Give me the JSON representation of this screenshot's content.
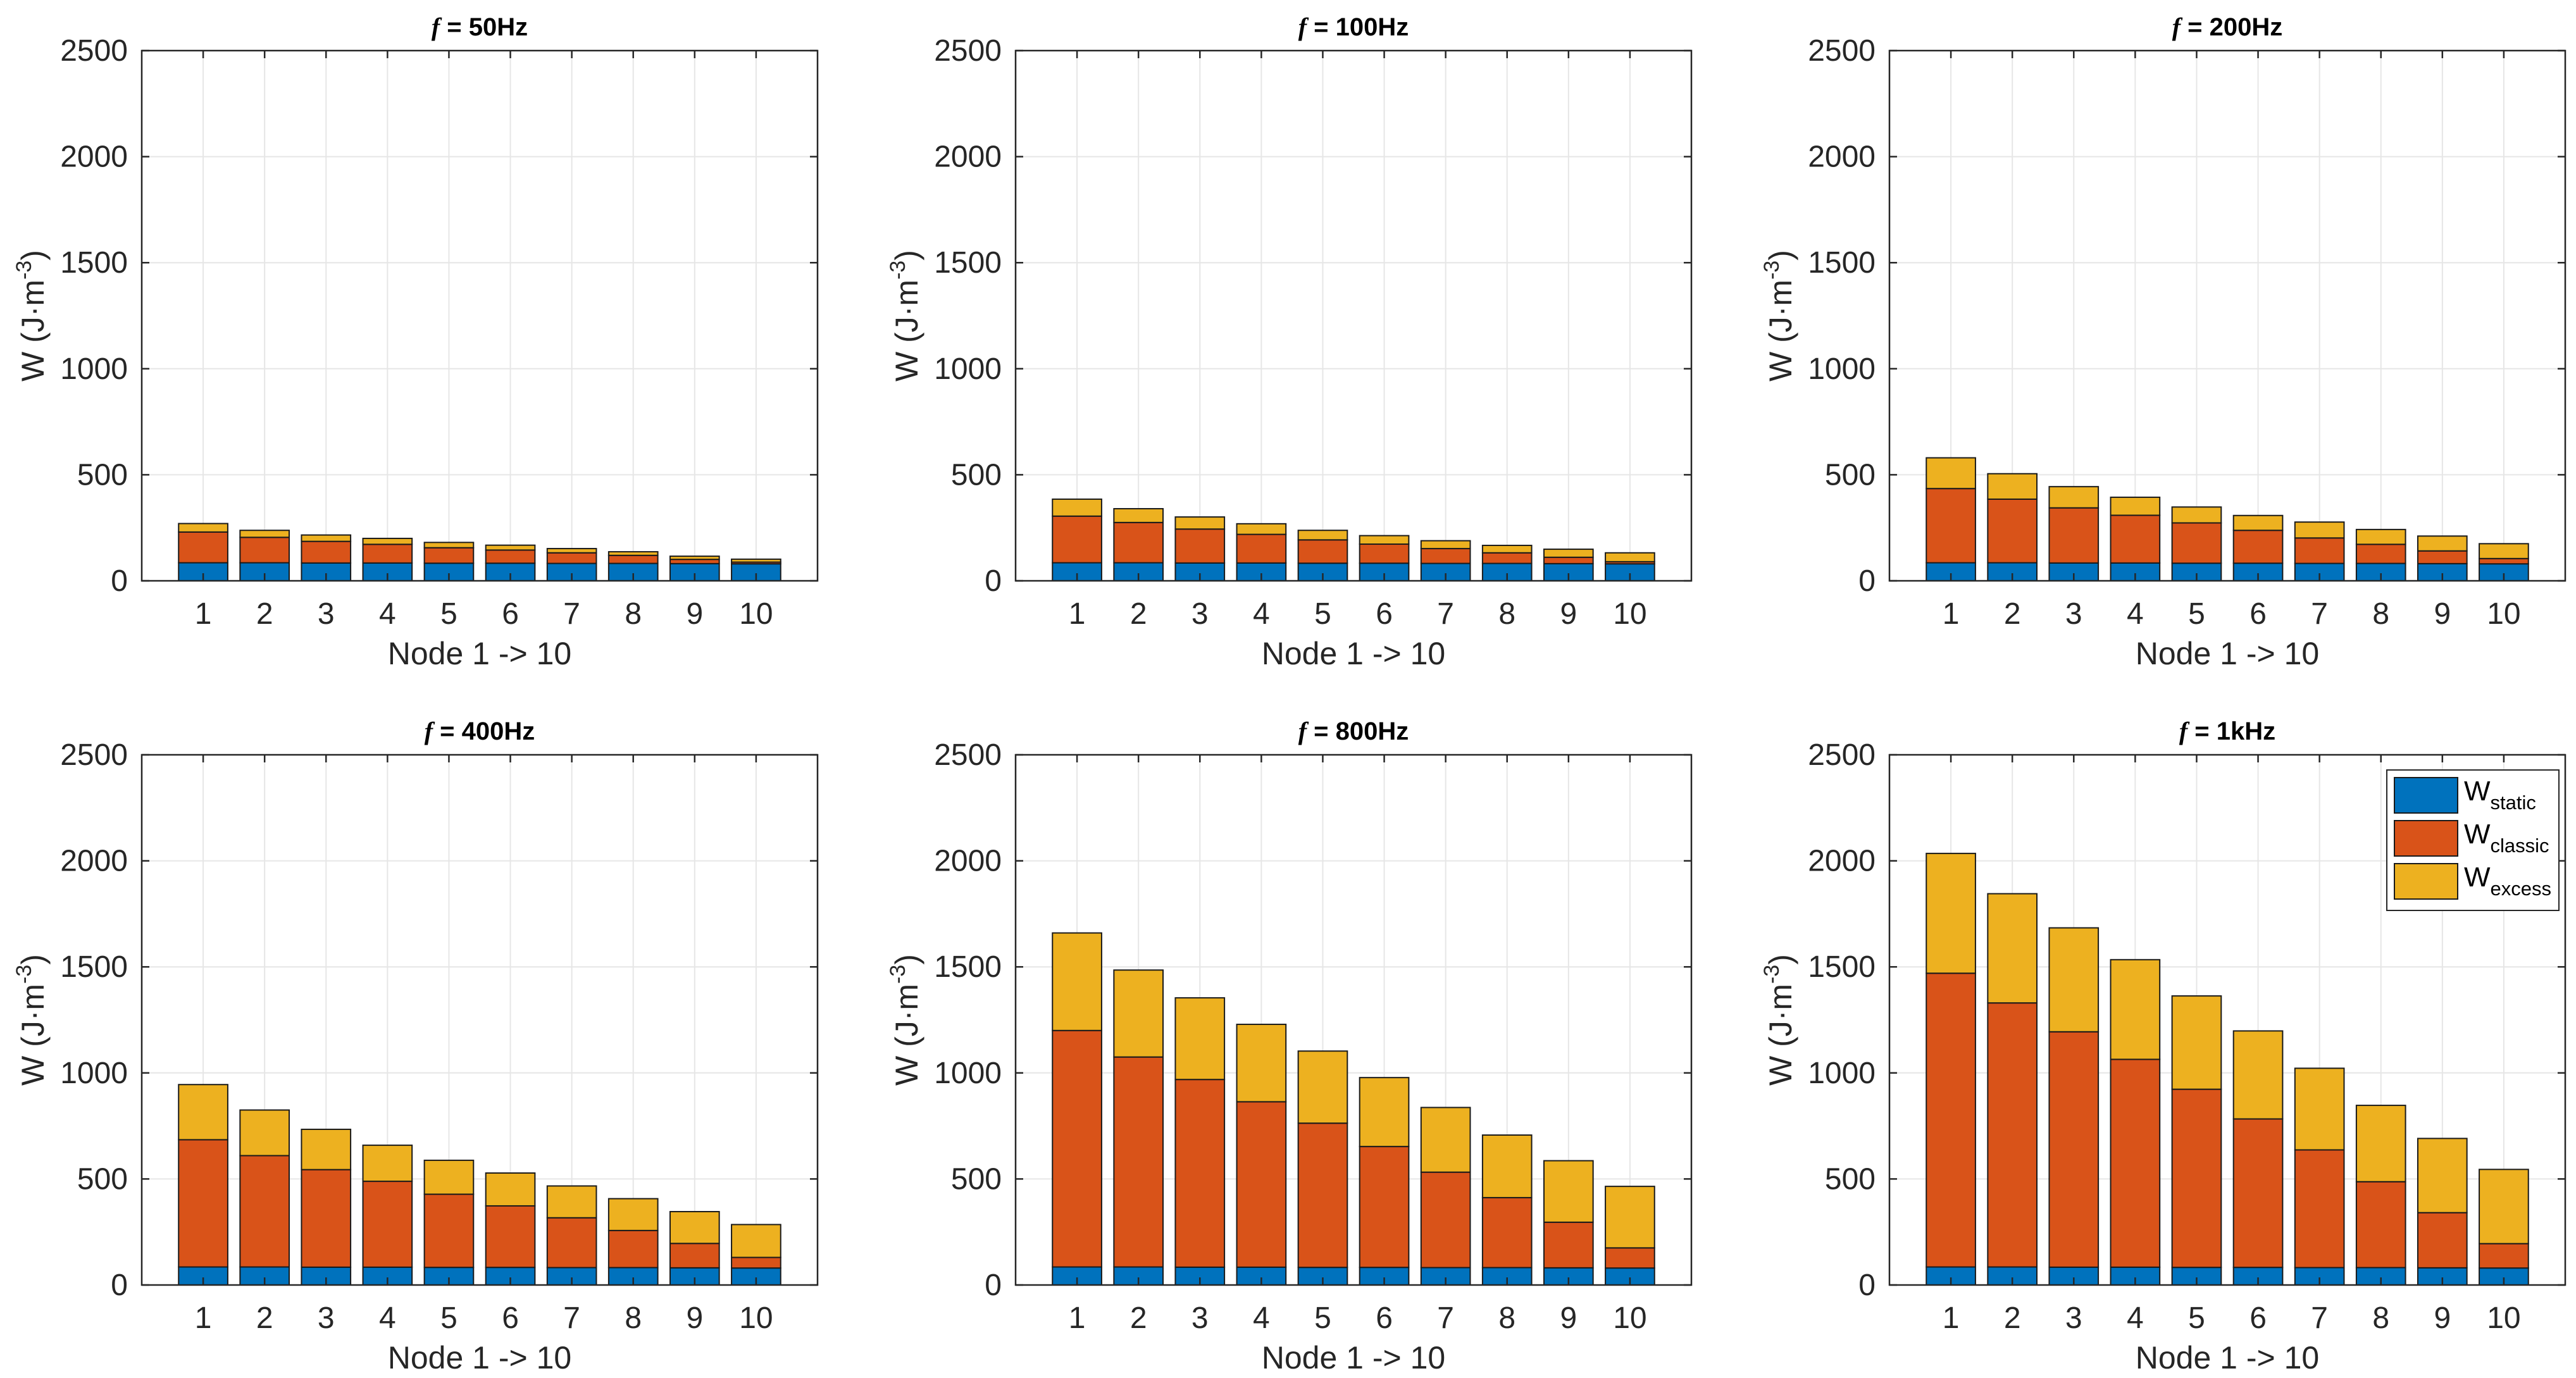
{
  "chart_data": [
    {
      "type": "bar",
      "stacked": true,
      "title_symbol": "f",
      "title_rest": " = 50Hz",
      "xlabel": "Node 1 -> 10",
      "ylabel": "W (J·m",
      "ylabel_sup": "-3",
      "ylabel_close": ")",
      "categories": [
        "1",
        "2",
        "3",
        "4",
        "5",
        "6",
        "7",
        "8",
        "9",
        "10"
      ],
      "ylim": [
        0,
        2500
      ],
      "yticks": [
        "0",
        "500",
        "1000",
        "1500",
        "2000",
        "2500"
      ],
      "grid": true,
      "series": [
        {
          "key": "static",
          "color": "#0072BD",
          "values": [
            85,
            85,
            84,
            84,
            83,
            83,
            82,
            82,
            81,
            80
          ]
        },
        {
          "key": "classic",
          "color": "#D95319",
          "values": [
            145,
            120,
            102,
            88,
            73,
            62,
            50,
            38,
            20,
            8
          ]
        },
        {
          "key": "excess",
          "color": "#EDB120",
          "values": [
            40,
            33,
            30,
            28,
            25,
            23,
            20,
            17,
            15,
            14
          ]
        }
      ]
    },
    {
      "type": "bar",
      "stacked": true,
      "title_symbol": "f",
      "title_rest": " = 100Hz",
      "xlabel": "Node 1 -> 10",
      "ylabel": "W (J·m",
      "ylabel_sup": "-3",
      "ylabel_close": ")",
      "categories": [
        "1",
        "2",
        "3",
        "4",
        "5",
        "6",
        "7",
        "8",
        "9",
        "10"
      ],
      "ylim": [
        0,
        2500
      ],
      "yticks": [
        "0",
        "500",
        "1000",
        "1500",
        "2000",
        "2500"
      ],
      "grid": true,
      "series": [
        {
          "key": "static",
          "color": "#0072BD",
          "values": [
            85,
            85,
            84,
            84,
            83,
            83,
            82,
            82,
            81,
            80
          ]
        },
        {
          "key": "classic",
          "color": "#D95319",
          "values": [
            220,
            190,
            160,
            135,
            110,
            90,
            70,
            50,
            30,
            10
          ]
        },
        {
          "key": "excess",
          "color": "#EDB120",
          "values": [
            80,
            65,
            57,
            50,
            45,
            40,
            37,
            35,
            38,
            42
          ]
        }
      ]
    },
    {
      "type": "bar",
      "stacked": true,
      "title_symbol": "f",
      "title_rest": " = 200Hz",
      "xlabel": "Node 1 -> 10",
      "ylabel": "W (J·m",
      "ylabel_sup": "-3",
      "ylabel_close": ")",
      "categories": [
        "1",
        "2",
        "3",
        "4",
        "5",
        "6",
        "7",
        "8",
        "9",
        "10"
      ],
      "ylim": [
        0,
        2500
      ],
      "yticks": [
        "0",
        "500",
        "1000",
        "1500",
        "2000",
        "2500"
      ],
      "grid": true,
      "series": [
        {
          "key": "static",
          "color": "#0072BD",
          "values": [
            85,
            85,
            84,
            84,
            83,
            83,
            82,
            82,
            81,
            80
          ]
        },
        {
          "key": "classic",
          "color": "#D95319",
          "values": [
            350,
            300,
            260,
            225,
            190,
            155,
            120,
            90,
            60,
            25
          ]
        },
        {
          "key": "excess",
          "color": "#EDB120",
          "values": [
            145,
            120,
            100,
            85,
            75,
            70,
            75,
            70,
            70,
            70
          ]
        }
      ]
    },
    {
      "type": "bar",
      "stacked": true,
      "title_symbol": "f",
      "title_rest": " = 400Hz",
      "xlabel": "Node 1 -> 10",
      "ylabel": "W (J·m",
      "ylabel_sup": "-3",
      "ylabel_close": ")",
      "categories": [
        "1",
        "2",
        "3",
        "4",
        "5",
        "6",
        "7",
        "8",
        "9",
        "10"
      ],
      "ylim": [
        0,
        2500
      ],
      "yticks": [
        "0",
        "500",
        "1000",
        "1500",
        "2000",
        "2500"
      ],
      "grid": true,
      "series": [
        {
          "key": "static",
          "color": "#0072BD",
          "values": [
            85,
            85,
            84,
            84,
            83,
            83,
            82,
            82,
            81,
            80
          ]
        },
        {
          "key": "classic",
          "color": "#D95319",
          "values": [
            600,
            525,
            460,
            405,
            345,
            290,
            235,
            175,
            115,
            50
          ]
        },
        {
          "key": "excess",
          "color": "#EDB120",
          "values": [
            260,
            215,
            190,
            170,
            160,
            155,
            150,
            150,
            150,
            155
          ]
        }
      ]
    },
    {
      "type": "bar",
      "stacked": true,
      "title_symbol": "f",
      "title_rest": " = 800Hz",
      "xlabel": "Node 1 -> 10",
      "ylabel": "W (J·m",
      "ylabel_sup": "-3",
      "ylabel_close": ")",
      "categories": [
        "1",
        "2",
        "3",
        "4",
        "5",
        "6",
        "7",
        "8",
        "9",
        "10"
      ],
      "ylim": [
        0,
        2500
      ],
      "yticks": [
        "0",
        "500",
        "1000",
        "1500",
        "2000",
        "2500"
      ],
      "grid": true,
      "series": [
        {
          "key": "static",
          "color": "#0072BD",
          "values": [
            85,
            85,
            84,
            84,
            83,
            83,
            82,
            82,
            81,
            80
          ]
        },
        {
          "key": "classic",
          "color": "#D95319",
          "values": [
            1115,
            990,
            885,
            780,
            680,
            570,
            450,
            330,
            215,
            95
          ]
        },
        {
          "key": "excess",
          "color": "#EDB120",
          "values": [
            460,
            410,
            385,
            365,
            340,
            325,
            305,
            295,
            290,
            290
          ]
        }
      ]
    },
    {
      "type": "bar",
      "stacked": true,
      "title_symbol": "f",
      "title_rest": " = 1kHz",
      "xlabel": "Node 1 -> 10",
      "ylabel": "W (J·m",
      "ylabel_sup": "-3",
      "ylabel_close": ")",
      "categories": [
        "1",
        "2",
        "3",
        "4",
        "5",
        "6",
        "7",
        "8",
        "9",
        "10"
      ],
      "ylim": [
        0,
        2500
      ],
      "yticks": [
        "0",
        "500",
        "1000",
        "1500",
        "2000",
        "2500"
      ],
      "grid": true,
      "series": [
        {
          "key": "static",
          "color": "#0072BD",
          "values": [
            85,
            85,
            84,
            84,
            83,
            83,
            82,
            82,
            81,
            80
          ]
        },
        {
          "key": "classic",
          "color": "#D95319",
          "values": [
            1385,
            1245,
            1110,
            980,
            840,
            700,
            555,
            405,
            260,
            115
          ]
        },
        {
          "key": "excess",
          "color": "#EDB120",
          "values": [
            565,
            515,
            490,
            470,
            440,
            415,
            385,
            360,
            350,
            350
          ]
        }
      ],
      "legend": {
        "placement": "top-right",
        "entries": [
          {
            "base": "W",
            "sub": "static",
            "color": "#0072BD"
          },
          {
            "base": "W",
            "sub": "classic",
            "color": "#D95319"
          },
          {
            "base": "W",
            "sub": "excess",
            "color": "#EDB120"
          }
        ]
      }
    }
  ]
}
